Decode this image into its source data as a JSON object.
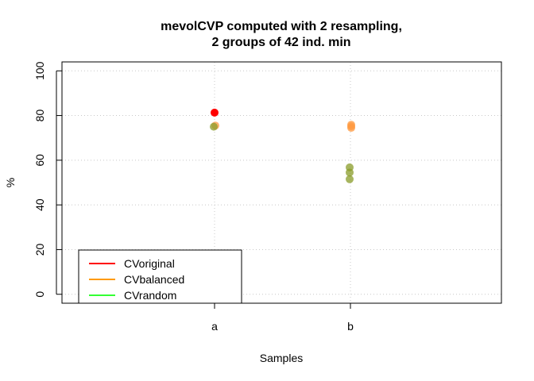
{
  "chart_data": {
    "type": "scatter",
    "title_lines": [
      "mevolCVP computed with 2 resampling,",
      "2 groups of 42 ind. min"
    ],
    "xlabel": "Samples",
    "ylabel": "%",
    "categories": [
      "a",
      "b"
    ],
    "yticks": [
      "0",
      "20",
      "40",
      "60",
      "80",
      "100"
    ],
    "ylim": [
      -4,
      104
    ],
    "grid": "dotted",
    "legend_position": "bottom-left",
    "series": [
      {
        "name": "CVoriginal",
        "legend_color": "#ff0000",
        "point_color": "#ff0000",
        "points": [
          {
            "x": "a",
            "y": 81.3
          }
        ]
      },
      {
        "name": "CVbalanced",
        "legend_color": "#ff9a00",
        "point_color": "#ff9a40",
        "points": [
          {
            "x": "a",
            "y": 75.5
          },
          {
            "x": "b",
            "y": 74.5
          },
          {
            "x": "b",
            "y": 75.2
          },
          {
            "x": "b",
            "y": 75.9
          }
        ]
      },
      {
        "name": "CVrandom",
        "legend_color": "#33ff33",
        "point_color": "#8a9c2a",
        "points": [
          {
            "x": "a",
            "y": 75.0
          },
          {
            "x": "b",
            "y": 51.5
          },
          {
            "x": "b",
            "y": 54.5
          },
          {
            "x": "b",
            "y": 56.8
          }
        ]
      }
    ]
  }
}
